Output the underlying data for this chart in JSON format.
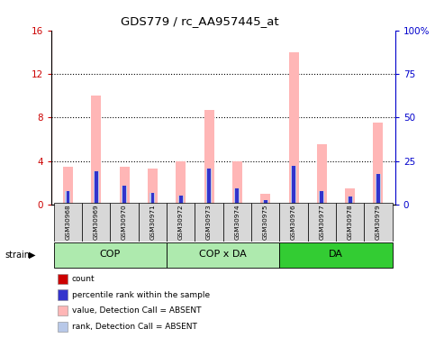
{
  "title": "GDS779 / rc_AA957445_at",
  "samples": [
    "GSM30968",
    "GSM30969",
    "GSM30970",
    "GSM30971",
    "GSM30972",
    "GSM30973",
    "GSM30974",
    "GSM30975",
    "GSM30976",
    "GSM30977",
    "GSM30978",
    "GSM30979"
  ],
  "value_absent": [
    3.5,
    10.0,
    3.5,
    3.3,
    4.0,
    8.7,
    4.0,
    1.0,
    14.0,
    5.5,
    1.5,
    7.5
  ],
  "rank_absent_pct": [
    7.5,
    19.0,
    11.0,
    6.5,
    5.0,
    20.5,
    9.5,
    2.5,
    22.0,
    7.5,
    4.5,
    17.5
  ],
  "count_values": [
    0.12,
    0.08,
    0.08,
    0.07,
    0.08,
    0.1,
    0.08,
    0.07,
    0.1,
    0.07,
    0.07,
    0.08
  ],
  "percentile_pct": [
    7.5,
    19.0,
    11.0,
    6.5,
    5.0,
    20.5,
    9.5,
    2.5,
    22.0,
    7.5,
    4.5,
    17.5
  ],
  "ylim_left": [
    0,
    16
  ],
  "ylim_right": [
    0,
    100
  ],
  "yticks_left": [
    0,
    4,
    8,
    12,
    16
  ],
  "yticks_right": [
    0,
    25,
    50,
    75,
    100
  ],
  "ytick_labels_right": [
    "0",
    "25",
    "50",
    "75",
    "100%"
  ],
  "left_axis_color": "#cc0000",
  "right_axis_color": "#0000cc",
  "bar_value_color": "#ffb6b6",
  "bar_rank_color": "#b8c8e8",
  "count_color": "#cc0000",
  "percentile_color": "#3333cc",
  "group_defs": [
    {
      "label": "COP",
      "start": 0,
      "end": 3,
      "color": "#aeeaae"
    },
    {
      "label": "COP x DA",
      "start": 4,
      "end": 7,
      "color": "#aeeaae"
    },
    {
      "label": "DA",
      "start": 8,
      "end": 11,
      "color": "#33cc33"
    }
  ],
  "legend_items": [
    {
      "label": "count",
      "color": "#cc0000"
    },
    {
      "label": "percentile rank within the sample",
      "color": "#3333cc"
    },
    {
      "label": "value, Detection Call = ABSENT",
      "color": "#ffb6b6"
    },
    {
      "label": "rank, Detection Call = ABSENT",
      "color": "#b8c8e8"
    }
  ]
}
